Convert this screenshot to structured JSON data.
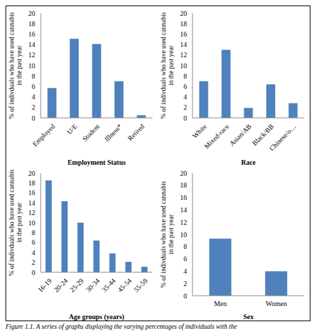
{
  "chart_data": [
    {
      "type": "bar",
      "x_label": "Employment Status",
      "ylabel": [
        "% of indivduals who have used cannabis",
        "in the past year"
      ],
      "categories": [
        "Employed",
        "U/E",
        "Student",
        "Illness*",
        "Retired"
      ],
      "values": [
        5.7,
        15.1,
        14.1,
        7.0,
        0.5
      ],
      "color": "#4f81bd",
      "ylim": [
        0,
        20
      ],
      "yticks": [
        0,
        2,
        4,
        6,
        8,
        10,
        12,
        14,
        16,
        18,
        20
      ],
      "grid": false
    },
    {
      "type": "bar",
      "x_label": "Race",
      "ylabel": [
        "% of indivduals who have used cannabis",
        "in the past year"
      ],
      "categories": [
        "White",
        "Mixed-race",
        "Asian/AB",
        "Black/BB",
        "Chinese/o…"
      ],
      "values": [
        7.0,
        13.0,
        1.9,
        6.4,
        2.8
      ],
      "color": "#4f81bd",
      "ylim": [
        0,
        20
      ],
      "yticks": [
        0,
        2,
        4,
        6,
        8,
        10,
        12,
        14,
        16,
        18,
        20
      ],
      "grid": false
    },
    {
      "type": "bar",
      "x_label": "Age groups (years)",
      "ylabel": [
        "% of indivduals who have used cannabis",
        "in the past year"
      ],
      "categories": [
        "16-19",
        "20-24",
        "25-29",
        "30-34",
        "35-44",
        "45-54",
        "55-59"
      ],
      "values": [
        18.5,
        14.3,
        10.0,
        6.4,
        3.8,
        2.1,
        1.1
      ],
      "color": "#4f81bd",
      "ylim": [
        0,
        20
      ],
      "yticks": [
        0,
        2,
        4,
        6,
        8,
        10,
        12,
        14,
        16,
        18,
        20
      ],
      "grid": false
    },
    {
      "type": "bar",
      "x_label": "Sex",
      "ylabel": [
        "% of indivduals who have used cannabis",
        "in the past year"
      ],
      "categories": [
        "Men",
        "Women"
      ],
      "values": [
        9.3,
        4.0
      ],
      "color": "#4f81bd",
      "ylim": [
        0,
        20
      ],
      "yticks": [
        0,
        2,
        4,
        6,
        8,
        10,
        12,
        14,
        16,
        18,
        20
      ],
      "grid": false
    }
  ],
  "caption": "Figure 1.1. A series of graphs displaying the varying percentages of individuals with the"
}
